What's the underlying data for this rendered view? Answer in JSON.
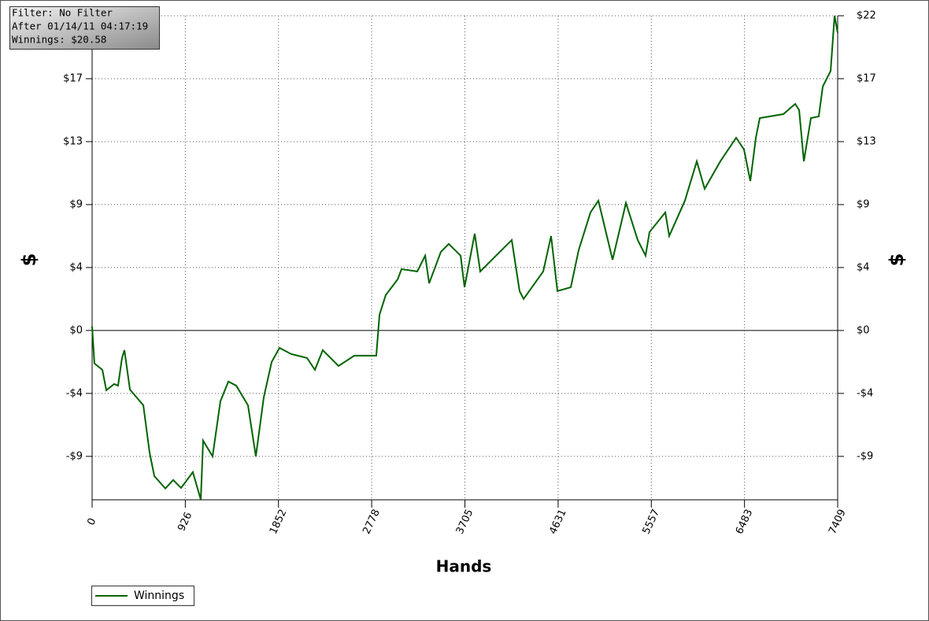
{
  "info": [
    "Filter: No Filter",
    "After 01/14/11 04:17:19",
    "Winnings: $20.58"
  ],
  "chart_data": {
    "type": "line",
    "xlabel": "Hands",
    "ylabel": "$",
    "y2label": "$",
    "xlim": [
      0,
      7409
    ],
    "xticks": [
      0,
      926,
      1852,
      2778,
      3705,
      4631,
      5557,
      6483,
      7409
    ],
    "ylim": [
      -11.7,
      21.75
    ],
    "yticks": [
      {
        "value": -8.7,
        "label": "-$9"
      },
      {
        "value": -4.35,
        "label": "-$4"
      },
      {
        "value": 0,
        "label": "$0"
      },
      {
        "value": 4.35,
        "label": "$4"
      },
      {
        "value": 8.7,
        "label": "$9"
      },
      {
        "value": 13.05,
        "label": "$13"
      },
      {
        "value": 17.4,
        "label": "$17"
      },
      {
        "value": 21.75,
        "label": "$22"
      }
    ],
    "y2lim": [
      -11.7,
      21.75
    ],
    "y2ticks": [
      {
        "value": -8.7,
        "label": "-$9"
      },
      {
        "value": -4.35,
        "label": "-$4"
      },
      {
        "value": 0,
        "label": "$0"
      },
      {
        "value": 4.35,
        "label": "$4"
      },
      {
        "value": 8.7,
        "label": "$9"
      },
      {
        "value": 13.05,
        "label": "$13"
      },
      {
        "value": 17.4,
        "label": "$17"
      },
      {
        "value": 21.75,
        "label": "$22"
      }
    ],
    "grid": true,
    "legend": "bottom-left",
    "x": [
      0,
      23,
      102,
      141,
      219,
      258,
      297,
      321,
      376,
      509,
      571,
      618,
      728,
      806,
      884,
      1001,
      1080,
      1103,
      1197,
      1275,
      1354,
      1432,
      1549,
      1627,
      1706,
      1784,
      1862,
      1979,
      2136,
      2214,
      2292,
      2449,
      2605,
      2824,
      2856,
      2918,
      3036,
      3075,
      3231,
      3310,
      3349,
      3466,
      3544,
      3662,
      3701,
      3802,
      3857,
      4014,
      4170,
      4248,
      4288,
      4483,
      4561,
      4624,
      4757,
      4835,
      4953,
      5031,
      5172,
      5305,
      5422,
      5500,
      5539,
      5696,
      5735,
      5891,
      6009,
      6087,
      6243,
      6400,
      6478,
      6541,
      6596,
      6635,
      6869,
      6987,
      7026,
      7073,
      7143,
      7221,
      7261,
      7339,
      7378,
      7409
    ],
    "series": [
      {
        "name": "Winnings",
        "color": "#006400",
        "values": [
          0.27,
          -2.28,
          -2.72,
          -4.13,
          -3.7,
          -3.81,
          -1.9,
          -1.36,
          -4.08,
          -5.17,
          -8.43,
          -10.06,
          -10.92,
          -10.33,
          -10.88,
          -9.79,
          -11.69,
          -7.61,
          -8.7,
          -4.89,
          -3.53,
          -3.81,
          -5.17,
          -8.7,
          -4.62,
          -2.18,
          -1.2,
          -1.63,
          -1.9,
          -2.72,
          -1.36,
          -2.45,
          -1.74,
          -1.74,
          1.09,
          2.45,
          3.53,
          4.24,
          4.08,
          5.17,
          3.26,
          5.44,
          5.98,
          5.17,
          2.99,
          6.69,
          4.08,
          5.17,
          6.25,
          2.72,
          2.18,
          4.08,
          6.53,
          2.72,
          2.99,
          5.55,
          8.16,
          8.97,
          4.89,
          8.81,
          6.25,
          5.17,
          6.8,
          8.16,
          6.53,
          8.97,
          11.69,
          9.79,
          11.69,
          13.32,
          12.51,
          10.33,
          13.32,
          14.68,
          14.95,
          15.66,
          15.23,
          11.69,
          14.68,
          14.79,
          16.86,
          17.94,
          21.75,
          20.58
        ]
      }
    ]
  }
}
